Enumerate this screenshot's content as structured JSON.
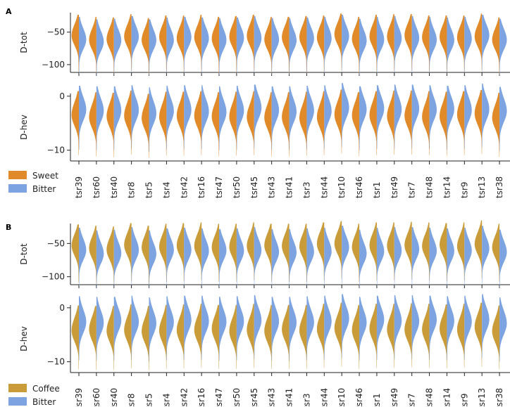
{
  "colors": {
    "sweet": "#e08a2a",
    "bitter": "#7da3e0",
    "coffee": "#c99b39",
    "axis": "#222222"
  },
  "chart_data": {
    "type": "split-violin",
    "categories": [
      "tsr39",
      "tsr60",
      "tsr40",
      "tsr8",
      "tsr5",
      "tsr4",
      "tsr42",
      "tsr16",
      "tsr47",
      "tsr50",
      "tsr45",
      "tsr43",
      "tsr41",
      "tsr3",
      "tsr44",
      "tsr10",
      "tsr46",
      "tsr1",
      "tsr49",
      "tsr7",
      "tsr48",
      "tsr14",
      "tsr9",
      "tsr13",
      "tsr38"
    ],
    "panels": [
      {
        "letter": "A",
        "legend": [
          {
            "label": "Sweet",
            "color_key": "sweet"
          },
          {
            "label": "Bitter",
            "color_key": "bitter"
          }
        ],
        "subplots": [
          {
            "ylabel": "D-tot",
            "ylim": [
              -112,
              -20
            ],
            "yticks": [
              -50,
              -100
            ],
            "ytick_labels": [
              "−50",
              "−100"
            ],
            "series": [
              {
                "name": "Sweet",
                "color_key": "sweet",
                "centers": [
                  -67,
                  -70,
                  -71,
                  -66,
                  -72,
                  -68,
                  -68,
                  -67,
                  -70,
                  -69,
                  -67,
                  -70,
                  -70,
                  -69,
                  -68,
                  -65,
                  -70,
                  -67,
                  -66,
                  -66,
                  -68,
                  -68,
                  -68,
                  -65,
                  -71
                ]
              },
              {
                "name": "Bitter",
                "color_key": "bitter",
                "centers": [
                  -70,
                  -74,
                  -73,
                  -69,
                  -74,
                  -71,
                  -70,
                  -71,
                  -72,
                  -71,
                  -69,
                  -72,
                  -72,
                  -71,
                  -70,
                  -67,
                  -73,
                  -70,
                  -69,
                  -69,
                  -70,
                  -71,
                  -70,
                  -67,
                  -73
                ]
              }
            ]
          },
          {
            "ylabel": "D-hev",
            "ylim": [
              -12,
              0.5
            ],
            "yticks": [
              0,
              -10
            ],
            "ytick_labels": [
              "0",
              "−10"
            ],
            "series": [
              {
                "name": "Sweet",
                "color_key": "sweet",
                "centers": [
                  -5,
                  -5.2,
                  -5.3,
                  -4.9,
                  -5.5,
                  -5.1,
                  -5.1,
                  -5.0,
                  -5.2,
                  -5.1,
                  -5.0,
                  -5.2,
                  -5.2,
                  -5.1,
                  -5.0,
                  -4.7,
                  -5.2,
                  -5.0,
                  -4.9,
                  -4.9,
                  -5.0,
                  -5.1,
                  -5.0,
                  -4.8,
                  -5.3
                ]
              },
              {
                "name": "Bitter",
                "color_key": "bitter",
                "centers": [
                  -4,
                  -4.1,
                  -4.1,
                  -3.9,
                  -4.3,
                  -4.0,
                  -3.9,
                  -3.9,
                  -4.1,
                  -4.0,
                  -3.8,
                  -4.1,
                  -4.1,
                  -4.0,
                  -3.9,
                  -3.5,
                  -4.1,
                  -3.9,
                  -3.8,
                  -3.8,
                  -3.9,
                  -4.0,
                  -3.9,
                  -3.6,
                  -4.2
                ]
              }
            ]
          }
        ]
      },
      {
        "letter": "B",
        "legend": [
          {
            "label": "Coffee",
            "color_key": "coffee"
          },
          {
            "label": "Bitter",
            "color_key": "bitter"
          }
        ],
        "subplots": [
          {
            "ylabel": "D-tot",
            "ylim": [
              -112,
              -20
            ],
            "yticks": [
              -50,
              -100
            ],
            "ytick_labels": [
              "−50",
              "−100"
            ],
            "series": [
              {
                "name": "Coffee",
                "color_key": "coffee",
                "centers": [
                  -65,
                  -67,
                  -68,
                  -63,
                  -67,
                  -64,
                  -63,
                  -62,
                  -64,
                  -64,
                  -62,
                  -64,
                  -64,
                  -64,
                  -62,
                  -60,
                  -64,
                  -62,
                  -62,
                  -61,
                  -62,
                  -63,
                  -62,
                  -59,
                  -64
                ]
              },
              {
                "name": "Bitter",
                "color_key": "bitter",
                "centers": [
                  -70,
                  -74,
                  -73,
                  -69,
                  -74,
                  -71,
                  -70,
                  -71,
                  -72,
                  -71,
                  -69,
                  -72,
                  -72,
                  -71,
                  -70,
                  -67,
                  -73,
                  -70,
                  -69,
                  -69,
                  -70,
                  -71,
                  -70,
                  -67,
                  -73
                ]
              }
            ]
          },
          {
            "ylabel": "D-hev",
            "ylim": [
              -12,
              0.5
            ],
            "yticks": [
              0,
              -10
            ],
            "ytick_labels": [
              "0",
              "−10"
            ],
            "series": [
              {
                "name": "Coffee",
                "color_key": "coffee",
                "centers": [
                  -5.5,
                  -5.6,
                  -5.6,
                  -5.3,
                  -5.6,
                  -5.4,
                  -5.3,
                  -5.2,
                  -5.4,
                  -5.4,
                  -5.2,
                  -5.4,
                  -5.4,
                  -5.4,
                  -5.2,
                  -5.0,
                  -5.4,
                  -5.2,
                  -5.2,
                  -5.1,
                  -5.2,
                  -5.3,
                  -5.2,
                  -5.0,
                  -5.5
                ]
              },
              {
                "name": "Bitter",
                "color_key": "bitter",
                "centers": [
                  -3.8,
                  -3.9,
                  -3.9,
                  -3.7,
                  -4.0,
                  -3.8,
                  -3.7,
                  -3.7,
                  -3.9,
                  -3.8,
                  -3.6,
                  -3.9,
                  -3.9,
                  -3.8,
                  -3.7,
                  -3.4,
                  -3.9,
                  -3.7,
                  -3.6,
                  -3.6,
                  -3.7,
                  -3.8,
                  -3.7,
                  -3.4,
                  -4.0
                ]
              }
            ]
          }
        ]
      }
    ]
  }
}
